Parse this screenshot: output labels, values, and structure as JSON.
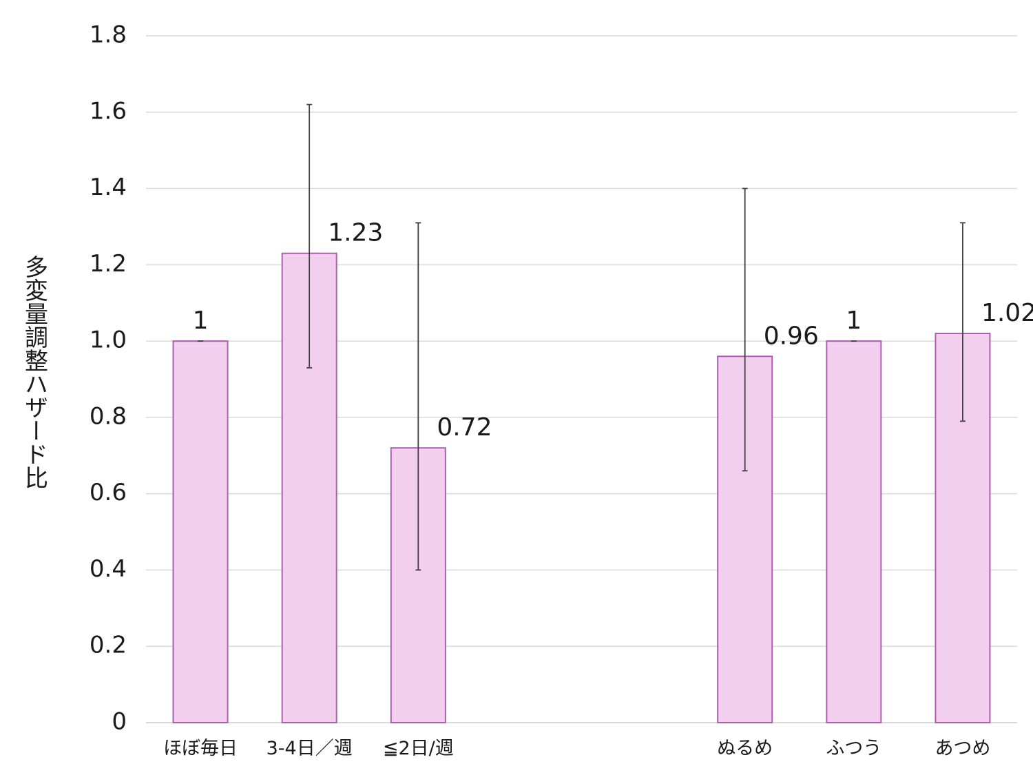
{
  "chart_data": {
    "type": "bar",
    "title": "",
    "xlabel": "",
    "ylabel": "多変量調整ハザード比",
    "ylim": [
      0,
      1.8
    ],
    "yticks": [
      "0",
      "0.2",
      "0.4",
      "0.6",
      "0.8",
      "1.0",
      "1.2",
      "1.4",
      "1.6",
      "1.8"
    ],
    "grid": true,
    "categories": [
      "ほぼ毎日",
      "3-4日／週",
      "≦2日/週",
      "",
      "",
      "ぬるめ",
      "ふつう",
      "あつめ"
    ],
    "values": [
      1,
      1.23,
      0.72,
      null,
      null,
      0.96,
      1,
      1.02
    ],
    "data_labels": [
      "1",
      "1.23",
      "0.72",
      "",
      "",
      "0.96",
      "1",
      "1.02"
    ],
    "error_low": [
      1,
      0.93,
      0.4,
      null,
      null,
      0.66,
      1,
      0.79
    ],
    "error_high": [
      1,
      1.62,
      1.31,
      null,
      null,
      1.4,
      1,
      1.31
    ],
    "colors": {
      "bar_fill": "#f2cfee",
      "bar_stroke": "#b05eb0",
      "grid": "#d9d9d9",
      "error": "#404040"
    }
  }
}
